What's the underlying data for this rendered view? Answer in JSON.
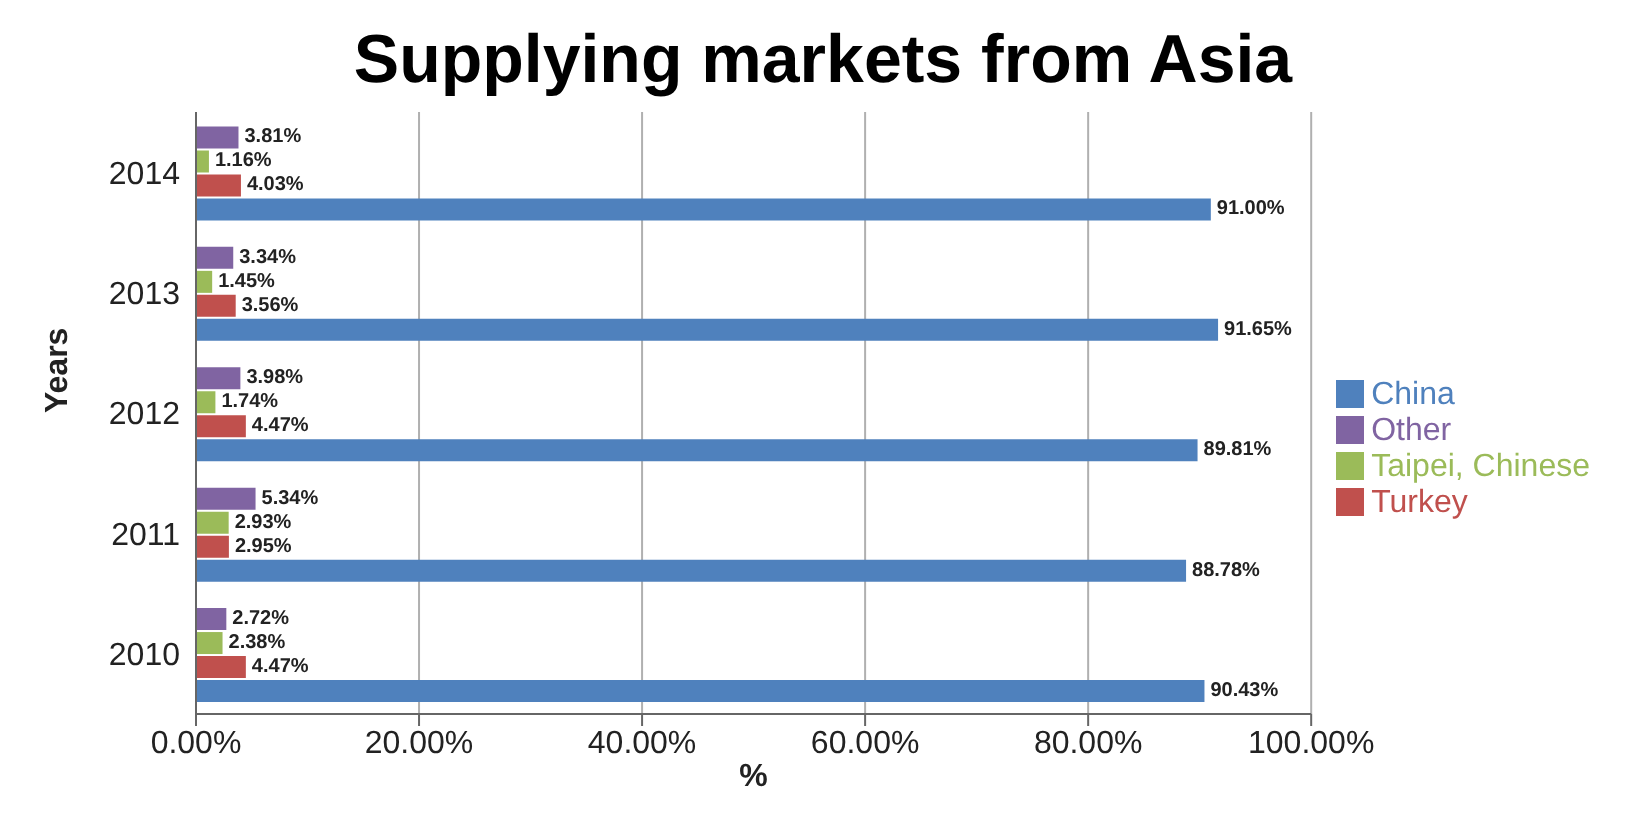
{
  "chart_data": {
    "type": "bar",
    "orientation": "horizontal",
    "title": "Supplying markets from Asia",
    "xlabel": "%",
    "ylabel": "Years",
    "categories": [
      "2014",
      "2013",
      "2012",
      "2011",
      "2010"
    ],
    "series": [
      {
        "name": "Other",
        "color": "#8064a2",
        "values": [
          3.81,
          3.34,
          3.98,
          5.34,
          2.72
        ],
        "value_labels": [
          "3.81%",
          "3.34%",
          "3.98%",
          "5.34%",
          "2.72%"
        ]
      },
      {
        "name": "Taipei, Chinese",
        "color": "#9bbb59",
        "values": [
          1.16,
          1.45,
          1.74,
          2.93,
          2.38
        ],
        "value_labels": [
          "1.16%",
          "1.45%",
          "1.74%",
          "2.93%",
          "2.38%"
        ]
      },
      {
        "name": "Turkey",
        "color": "#c0504d",
        "values": [
          4.03,
          3.56,
          4.47,
          2.95,
          4.47
        ],
        "value_labels": [
          "4.03%",
          "3.56%",
          "4.47%",
          "2.95%",
          "4.47%"
        ]
      },
      {
        "name": "China",
        "color": "#4f81bd",
        "values": [
          91.0,
          91.65,
          89.81,
          88.78,
          90.43
        ],
        "value_labels": [
          "91.00%",
          "91.65%",
          "89.81%",
          "88.78%",
          "90.43%"
        ]
      }
    ],
    "xlim": [
      0,
      100
    ],
    "xticks": [
      {
        "value": 0,
        "label": "0.00%"
      },
      {
        "value": 20,
        "label": "20.00%"
      },
      {
        "value": 40,
        "label": "40.00%"
      },
      {
        "value": 60,
        "label": "60.00%"
      },
      {
        "value": 80,
        "label": "80.00%"
      },
      {
        "value": 100,
        "label": "100.00%"
      }
    ],
    "grid": "x",
    "legend": "right"
  }
}
